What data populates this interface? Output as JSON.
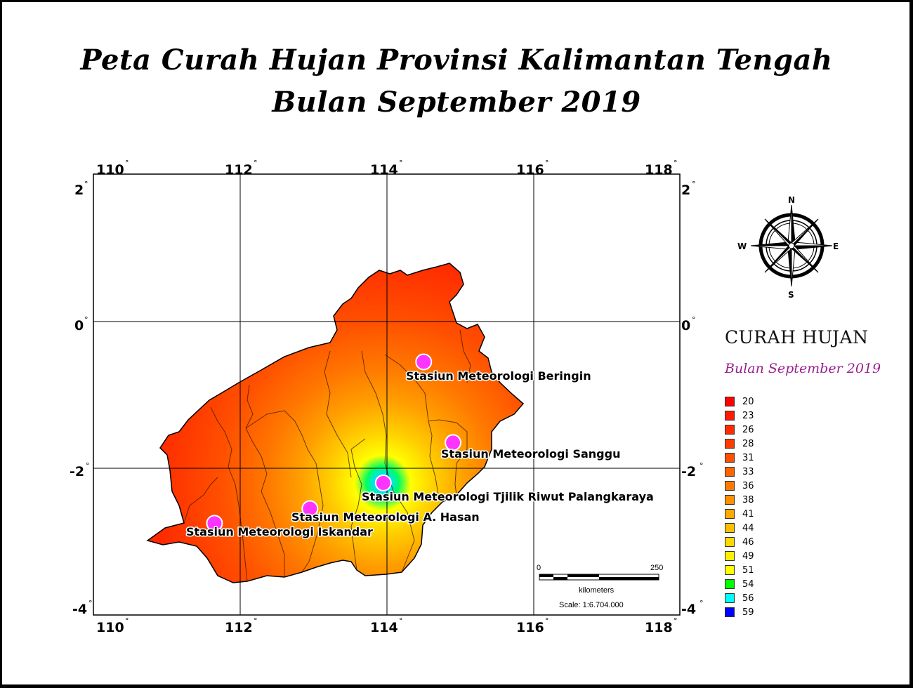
{
  "title": {
    "line1": "Peta Curah Hujan Provinsi Kalimantan Tengah",
    "line2": "Bulan September 2019"
  },
  "grid": {
    "lon_ticks": [
      "110",
      "112",
      "114",
      "116",
      "118"
    ],
    "lat_ticks": [
      "2",
      "0",
      "-2",
      "-4"
    ],
    "degree_symbol": "°"
  },
  "stations": [
    {
      "name": "Stasiun Meteorologi Beringin",
      "lon": 114.5,
      "lat": -0.55
    },
    {
      "name": "Stasiun Meteorologi Sanggu",
      "lon": 114.9,
      "lat": -1.65
    },
    {
      "name": "Stasiun Meteorologi  Tjilik Riwut Palangkaraya",
      "lon": 113.95,
      "lat": -2.2
    },
    {
      "name": "Stasiun Meteorologi A. Hasan",
      "lon": 112.95,
      "lat": -2.55
    },
    {
      "name": "Stasiun Meteorologi Iskandar",
      "lon": 111.65,
      "lat": -2.75
    }
  ],
  "compass": {
    "n": "N",
    "s": "S",
    "e": "E",
    "w": "W"
  },
  "scale_bar": {
    "start": "0",
    "end": "250",
    "unit": "kilometers",
    "scale_text": "Scale: 1:6.704.000"
  },
  "legend": {
    "title": "CURAH HUJAN",
    "subtitle": "Bulan September 2019",
    "items": [
      {
        "label": "20",
        "color": "#ff0000"
      },
      {
        "label": "23",
        "color": "#ff1a00"
      },
      {
        "label": "26",
        "color": "#ff2a00"
      },
      {
        "label": "28",
        "color": "#ff3c00"
      },
      {
        "label": "31",
        "color": "#ff5000"
      },
      {
        "label": "33",
        "color": "#ff6400"
      },
      {
        "label": "36",
        "color": "#ff7a00"
      },
      {
        "label": "38",
        "color": "#ff9000"
      },
      {
        "label": "41",
        "color": "#ffa800"
      },
      {
        "label": "44",
        "color": "#ffc000"
      },
      {
        "label": "46",
        "color": "#ffd800"
      },
      {
        "label": "49",
        "color": "#fff000"
      },
      {
        "label": "51",
        "color": "#ffff00"
      },
      {
        "label": "54",
        "color": "#00ff00"
      },
      {
        "label": "56",
        "color": "#00ffff"
      },
      {
        "label": "59",
        "color": "#0000ff"
      }
    ]
  }
}
